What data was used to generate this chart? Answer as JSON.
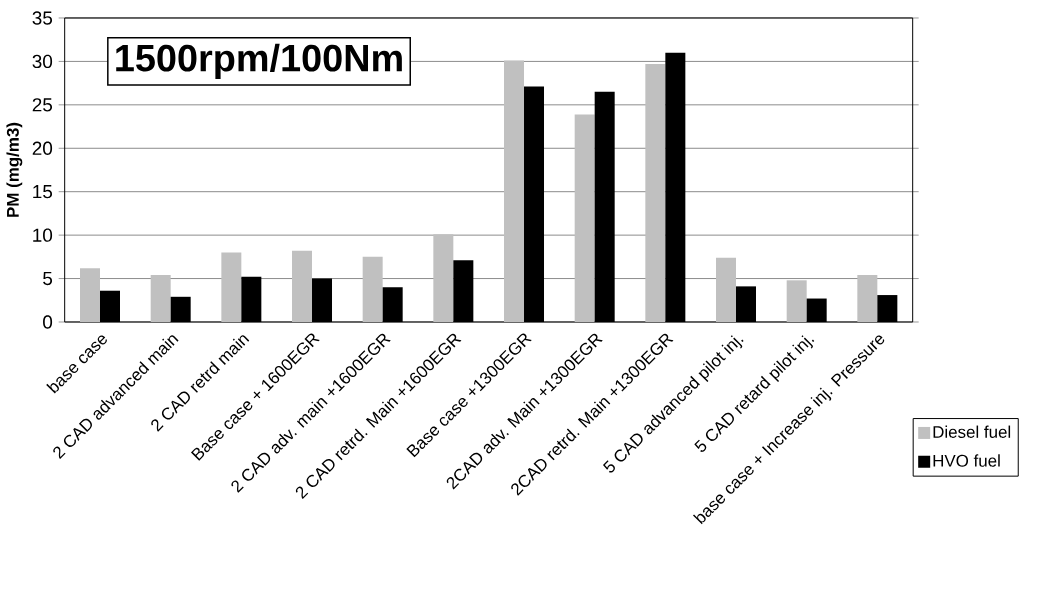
{
  "chart_data": {
    "type": "bar",
    "title": "1500rpm/100Nm",
    "ylabel": "PM (mg/m3)",
    "categories": [
      "base case",
      "2 CAD advanced main",
      "2 CAD retrd main",
      "Base case + 1600EGR",
      "2 CAD adv. main +1600EGR",
      "2 CAD retrd. Main +1600EGR",
      "Base case +1300EGR",
      "2CAD adv. Main +1300EGR",
      "2CAD retrd. Main +1300EGR",
      "5 CAD advanced pilot inj.",
      "5 CAD retard pilot inj.",
      "base case + Increase inj. Pressure"
    ],
    "series": [
      {
        "name": "Diesel fuel",
        "color": "#c0c0c0",
        "values": [
          6.2,
          5.4,
          8.0,
          8.2,
          7.5,
          10.1,
          30.1,
          23.9,
          29.7,
          7.4,
          4.8,
          5.4
        ]
      },
      {
        "name": "HVO fuel",
        "color": "#000000",
        "values": [
          3.6,
          2.9,
          5.2,
          5.0,
          4.0,
          7.1,
          27.1,
          26.5,
          31.0,
          4.1,
          2.7,
          3.1
        ]
      }
    ],
    "ylim": [
      0,
      35
    ],
    "yticks": [
      0,
      5,
      10,
      15,
      20,
      25,
      30,
      35
    ],
    "grid": "y",
    "legend": "right"
  }
}
